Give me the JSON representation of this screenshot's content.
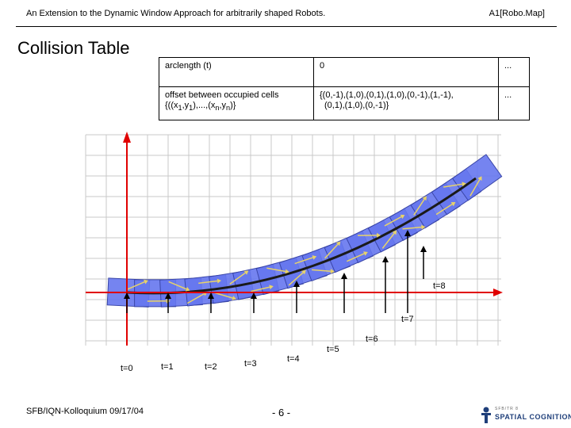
{
  "header": {
    "title": "An Extension to the Dynamic Window Approach for arbitrarily shaped Robots.",
    "code": "A1[Robo.Map]"
  },
  "slide_title": "Collision Table",
  "table": {
    "rows": [
      {
        "label": "arclength (t)",
        "value": "0",
        "more": "..."
      },
      {
        "label_line1": "offset between occupied cells",
        "label_line2_parts": [
          "{((x",
          "1",
          ",y",
          "1",
          "),...,(x",
          "n",
          ",y",
          "n",
          ")}"
        ],
        "value_line1": "{(0,-1),(1,0),(0,1),(1,0),(0,-1),(1,-1),",
        "value_line2": "(0,1),(1,0),(0,-1)}",
        "more": "..."
      }
    ]
  },
  "time_labels": [
    "t=0",
    "t=1",
    "t=2",
    "t=3",
    "t=4",
    "t=5",
    "t=6",
    "t=7",
    "t=8"
  ],
  "footer": {
    "left": "SFB/IQN-Kolloquium 09/17/04",
    "page": "- 6 -",
    "logo_top": "SFB/TR 8",
    "logo_main": "SPATIAL COGNITION"
  },
  "colors": {
    "grid": "#c8c8c8",
    "robot_fill": "#6677ee",
    "robot_stroke": "#3a46a8",
    "axis": "#e00000",
    "trajectory": "#1a1a1a",
    "arrow_yellow": "#e8d36a"
  }
}
